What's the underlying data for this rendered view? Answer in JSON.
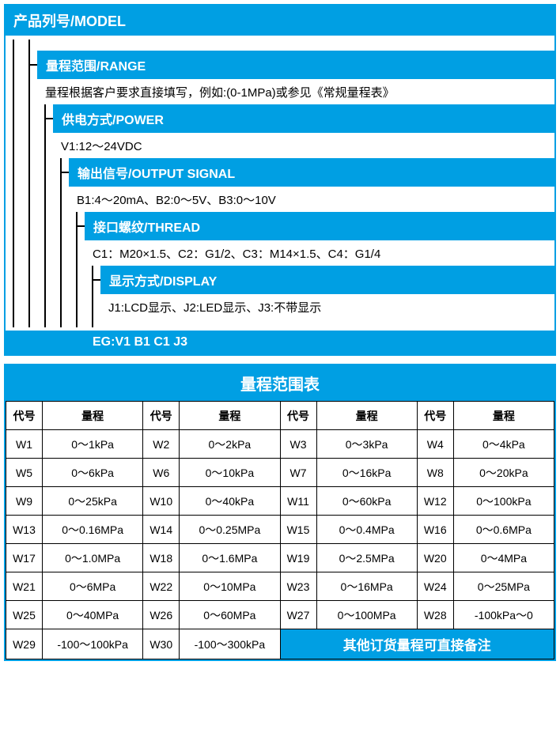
{
  "colors": {
    "primary": "#009fe3",
    "text_on_primary": "#ffffff",
    "border": "#000000",
    "background": "#ffffff"
  },
  "header": {
    "model": "产品列号/MODEL"
  },
  "sections": [
    {
      "label": "量程范围/RANGE",
      "content": "量程根据客户要求直接填写，例如:(0-1MPa)或参见《常规量程表》"
    },
    {
      "label": "供电方式/POWER",
      "content": "V1:12～24VDC"
    },
    {
      "label": "输出信号/OUTPUT SIGNAL",
      "content": "B1:4～20mA、B2:0～5V、B3:0～10V"
    },
    {
      "label": "接口螺纹/THREAD",
      "content": "C1：M20×1.5、C2：G1/2、C3：M14×1.5、C4：G1/4"
    },
    {
      "label": "显示方式/DISPLAY",
      "content": "J1:LCD显示、J2:LED显示、J3:不带显示"
    }
  ],
  "example": "EG:V1 B1 C1 J3",
  "range_table": {
    "title": "量程范围表",
    "col_headers": [
      "代号",
      "量程",
      "代号",
      "量程",
      "代号",
      "量程",
      "代号",
      "量程"
    ],
    "rows": [
      [
        "W1",
        "0～1kPa",
        "W2",
        "0～2kPa",
        "W3",
        "0～3kPa",
        "W4",
        "0～4kPa"
      ],
      [
        "W5",
        "0～6kPa",
        "W6",
        "0～10kPa",
        "W7",
        "0～16kPa",
        "W8",
        "0～20kPa"
      ],
      [
        "W9",
        "0～25kPa",
        "W10",
        "0～40kPa",
        "W11",
        "0～60kPa",
        "W12",
        "0～100kPa"
      ],
      [
        "W13",
        "0～0.16MPa",
        "W14",
        "0～0.25MPa",
        "W15",
        "0～0.4MPa",
        "W16",
        "0～0.6MPa"
      ],
      [
        "W17",
        "0～1.0MPa",
        "W18",
        "0～1.6MPa",
        "W19",
        "0～2.5MPa",
        "W20",
        "0～4MPa"
      ],
      [
        "W21",
        "0～6MPa",
        "W22",
        "0～10MPa",
        "W23",
        "0～16MPa",
        "W24",
        "0～25MPa"
      ],
      [
        "W25",
        "0～40MPa",
        "W26",
        "0～60MPa",
        "W27",
        "0～100MPa",
        "W28",
        "-100kPa～0"
      ]
    ],
    "last_row": {
      "cells": [
        "W29",
        "-100～100kPa",
        "W30",
        "-100～300kPa"
      ],
      "note": "其他订货量程可直接备注"
    }
  }
}
